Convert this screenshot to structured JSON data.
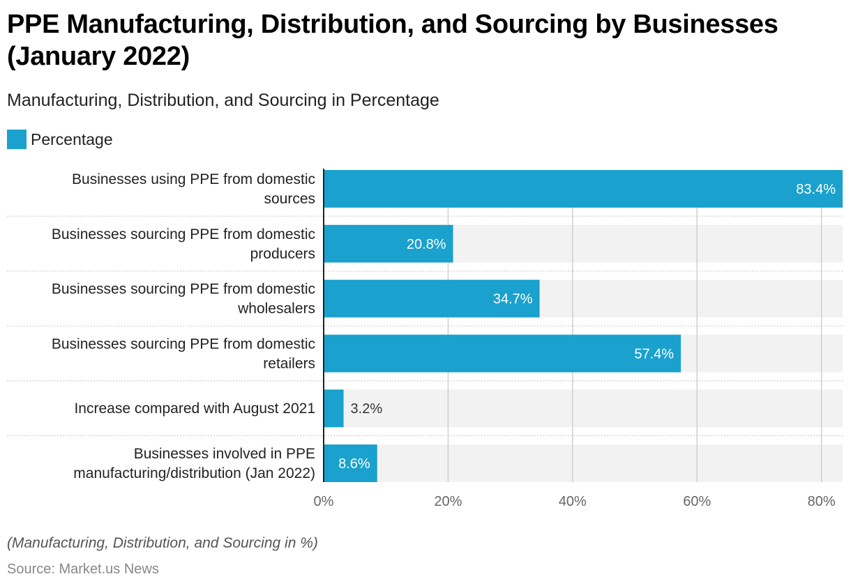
{
  "header": {
    "title": "PPE Manufacturing, Distribution, and Sourcing by Businesses (January 2022)",
    "subtitle": "Manufacturing, Distribution, and Sourcing in Percentage"
  },
  "legend": {
    "label": "Percentage",
    "color": "#1aa1cd"
  },
  "footer": {
    "note": "(Manufacturing, Distribution, and Sourcing in %)",
    "source": "Source: Market.us News"
  },
  "chart_data": {
    "type": "bar",
    "orientation": "horizontal",
    "title": "PPE Manufacturing, Distribution, and Sourcing by Businesses (January 2022)",
    "subtitle": "Manufacturing, Distribution, and Sourcing in Percentage",
    "xlabel": "",
    "ylabel": "",
    "xlim": [
      0,
      83.4
    ],
    "grid": true,
    "legend_position": "top-left",
    "x_ticks": [
      "0%",
      "20%",
      "40%",
      "60%",
      "80%"
    ],
    "x_tick_values": [
      0,
      20,
      40,
      60,
      80
    ],
    "categories": [
      [
        "Businesses using PPE from domestic",
        "sources"
      ],
      [
        "Businesses sourcing PPE from domestic",
        "producers"
      ],
      [
        "Businesses sourcing PPE from domestic",
        "wholesalers"
      ],
      [
        "Businesses sourcing PPE from domestic",
        "retailers"
      ],
      [
        "Increase compared with August 2021"
      ],
      [
        "Businesses involved in PPE",
        "manufacturing/distribution (Jan 2022)"
      ]
    ],
    "series": [
      {
        "name": "Percentage",
        "color": "#1aa1cd",
        "values": [
          83.4,
          20.8,
          34.7,
          57.4,
          3.2,
          8.6
        ],
        "labels": [
          "83.4%",
          "20.8%",
          "34.7%",
          "57.4%",
          "3.2%",
          "8.6%"
        ]
      }
    ]
  }
}
